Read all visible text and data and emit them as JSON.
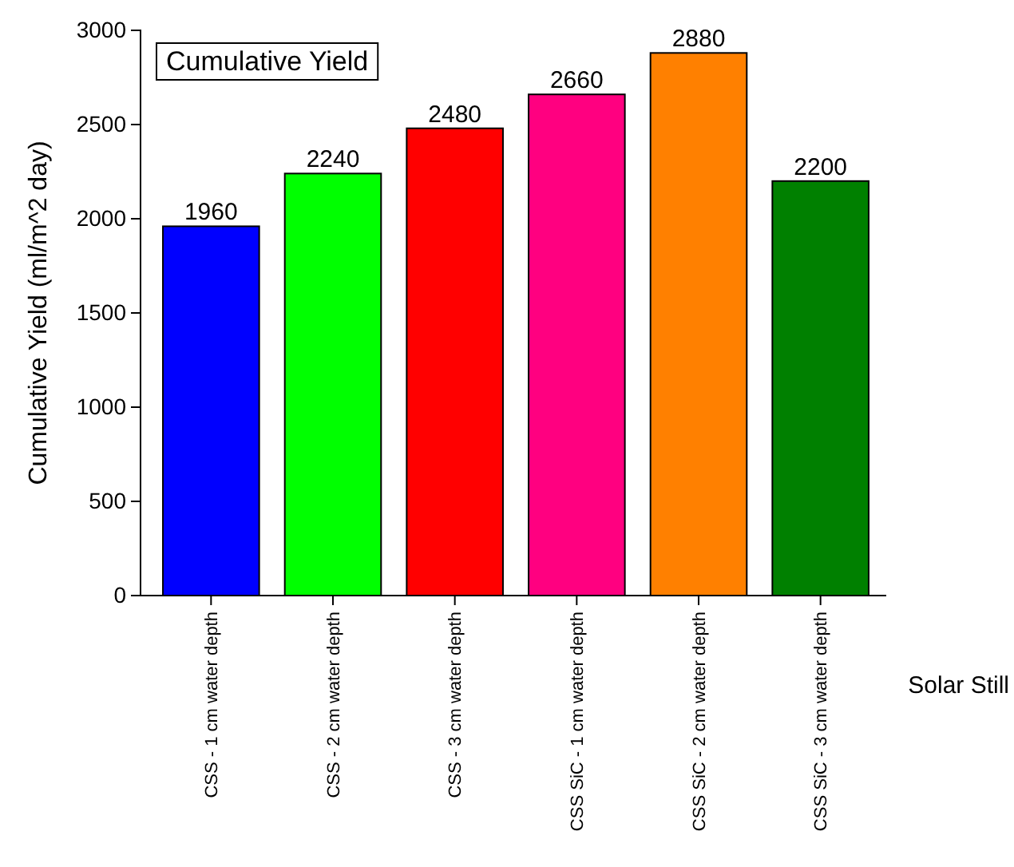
{
  "chart_data": {
    "type": "bar",
    "title": "Cumulative Yield",
    "xlabel": "Solar Still",
    "ylabel": "Cumulative Yield (ml/m^2 day)",
    "categories": [
      "CSS - 1 cm water depth",
      "CSS - 2 cm water depth",
      "CSS - 3 cm water depth",
      "CSS SiC - 1 cm water depth",
      "CSS SiC - 2 cm water depth",
      "CSS SiC - 3 cm water depth"
    ],
    "values": [
      1960,
      2240,
      2480,
      2660,
      2880,
      2200
    ],
    "colors": [
      "#0000ff",
      "#00ff00",
      "#ff0000",
      "#ff0080",
      "#ff8000",
      "#008000"
    ],
    "ylim": [
      0,
      3000
    ],
    "yticks": [
      0,
      500,
      1000,
      1500,
      2000,
      2500,
      3000
    ],
    "data_labels": true,
    "grid": false
  }
}
